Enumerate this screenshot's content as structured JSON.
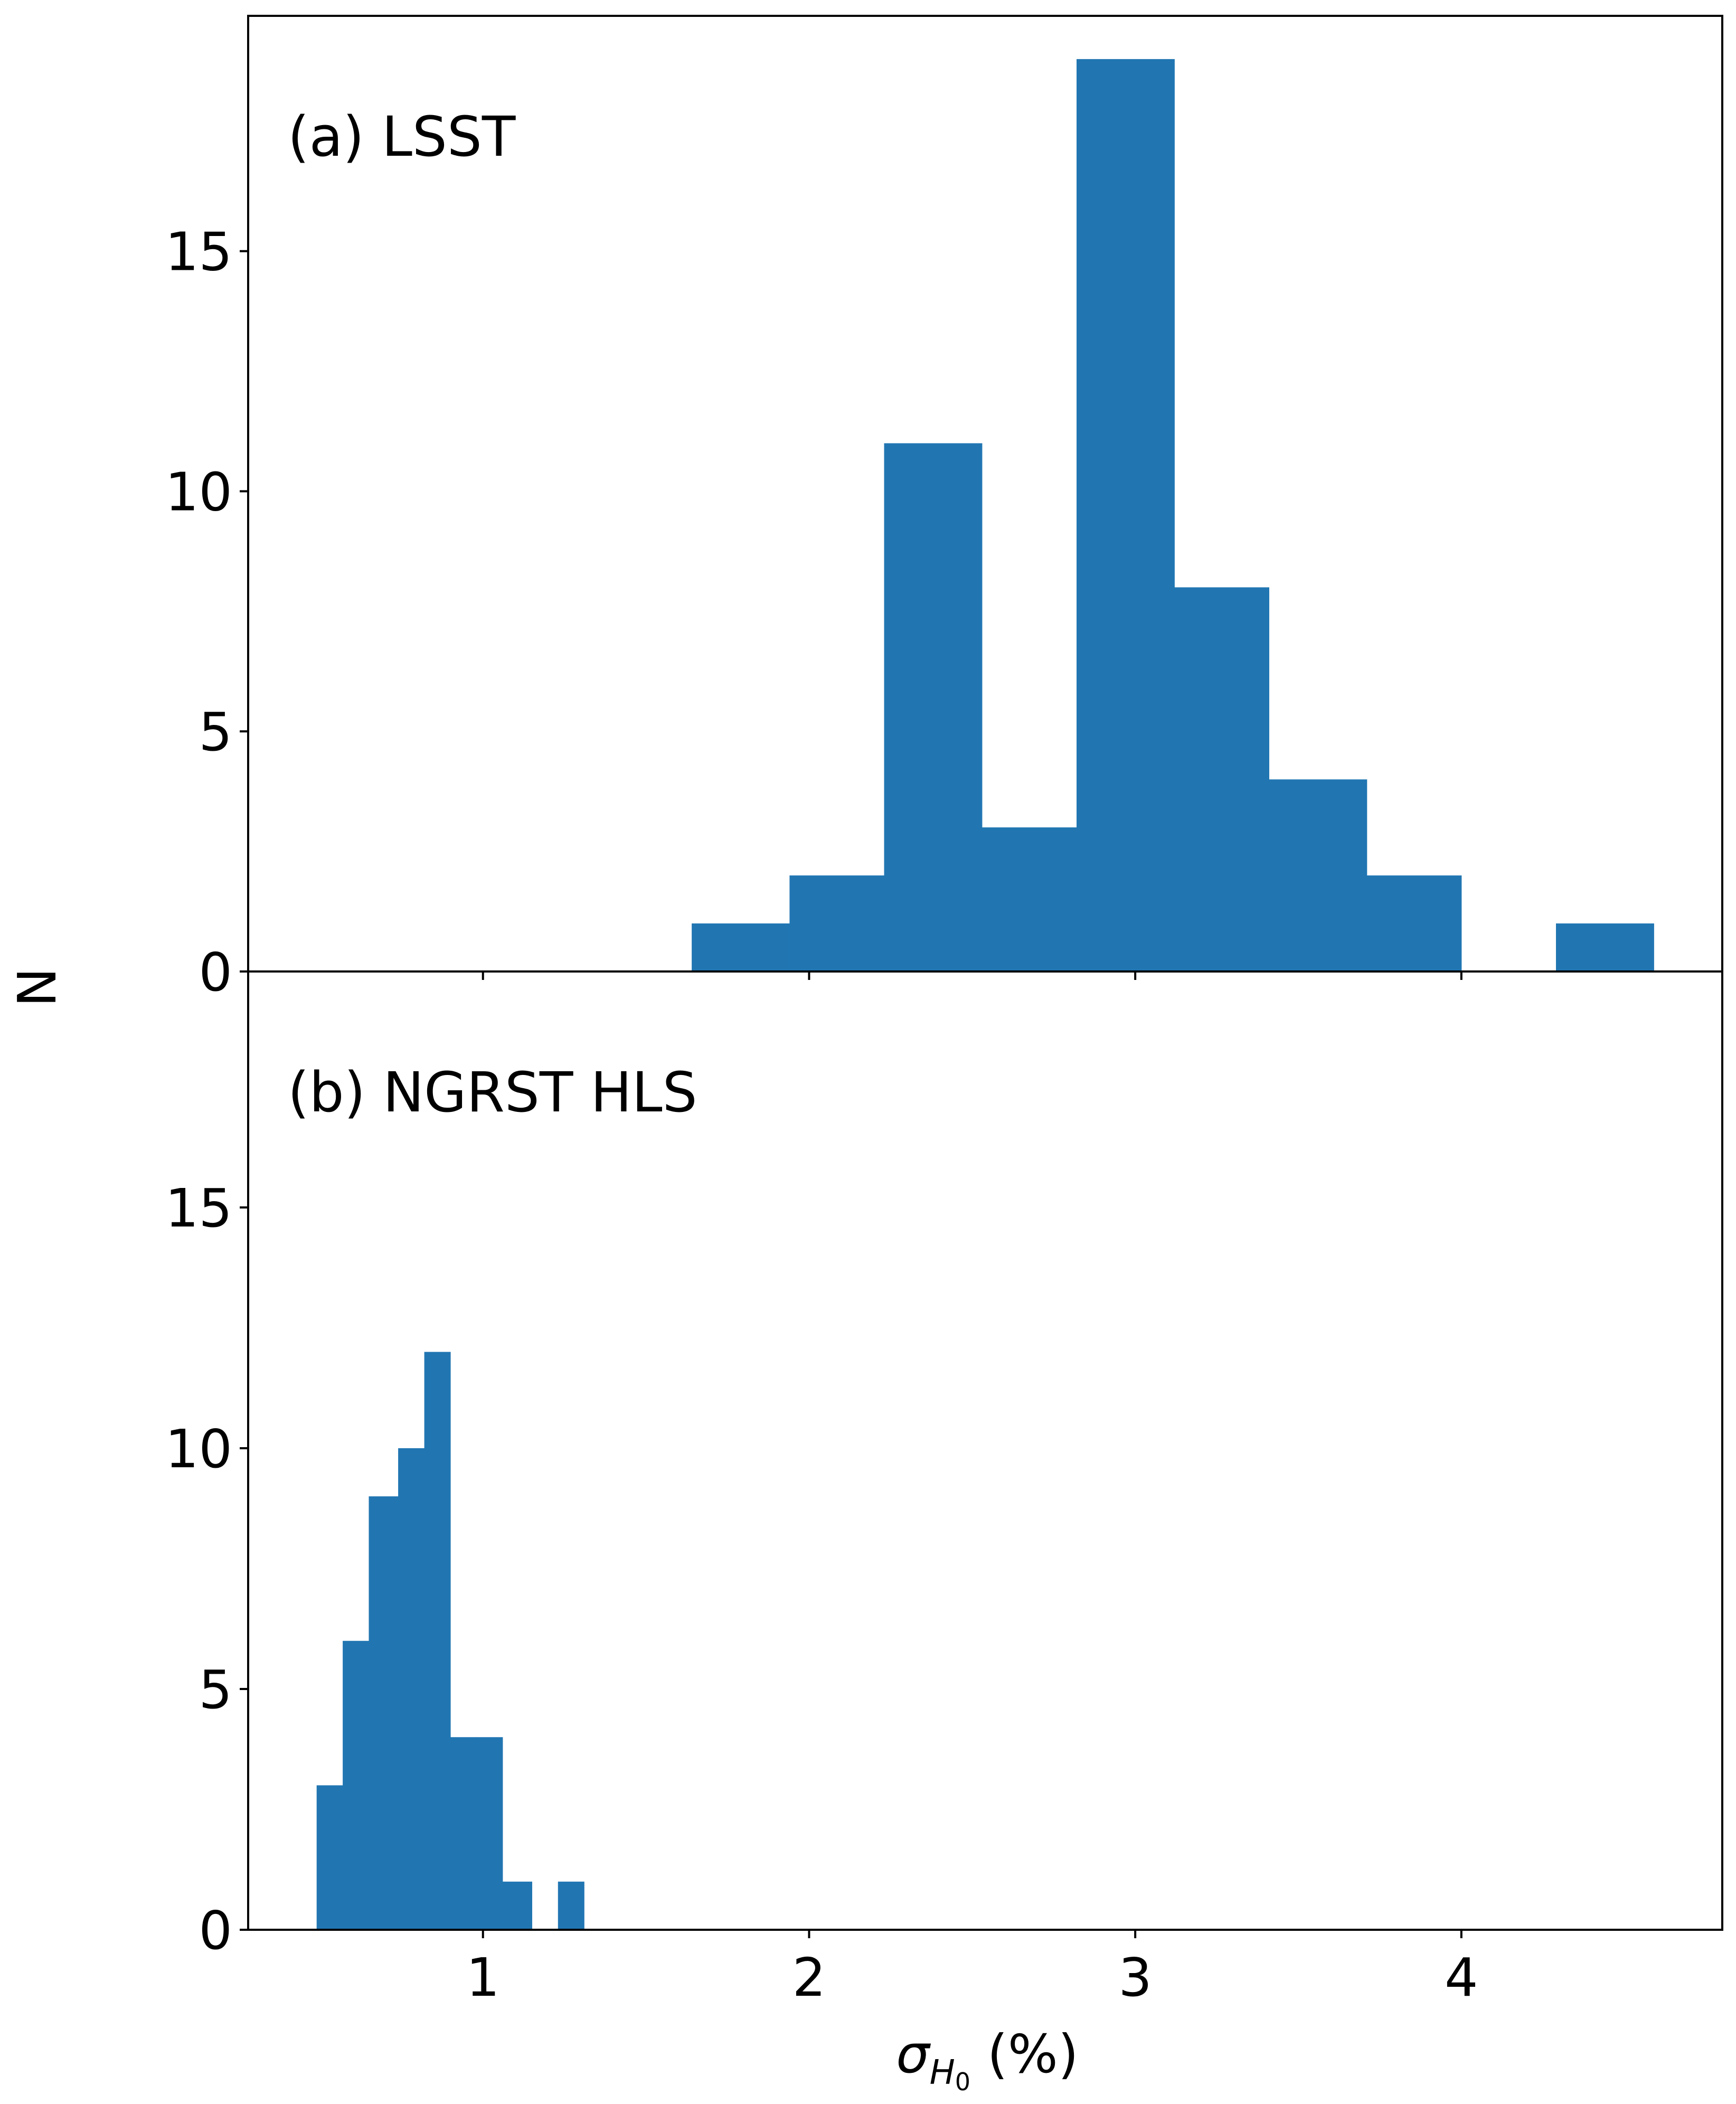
{
  "chart_data": {
    "type": "bar",
    "shared_x": {
      "label_symbol": "σ",
      "label_subscript": "H",
      "label_sub_subscript": "0",
      "label_suffix": " (%)",
      "ticks": [
        1,
        2,
        3,
        4
      ],
      "xlim": [
        0.28,
        4.8
      ]
    },
    "ylabel": "N",
    "color": "#2176b2",
    "panels": [
      {
        "title": "(a) LSST",
        "ylim": [
          0,
          19.9
        ],
        "yticks": [
          0,
          5,
          10,
          15
        ],
        "bins": [
          {
            "x0": 1.64,
            "x1": 1.94,
            "count": 1
          },
          {
            "x0": 1.94,
            "x1": 2.23,
            "count": 2
          },
          {
            "x0": 2.23,
            "x1": 2.53,
            "count": 11
          },
          {
            "x0": 2.53,
            "x1": 2.82,
            "count": 3
          },
          {
            "x0": 2.82,
            "x1": 3.12,
            "count": 19
          },
          {
            "x0": 3.12,
            "x1": 3.41,
            "count": 8
          },
          {
            "x0": 3.41,
            "x1": 3.71,
            "count": 4
          },
          {
            "x0": 3.71,
            "x1": 4.0,
            "count": 2
          },
          {
            "x0": 4.0,
            "x1": 4.29,
            "count": 0
          },
          {
            "x0": 4.29,
            "x1": 4.59,
            "count": 1
          }
        ]
      },
      {
        "title": "(b) NGRST HLS",
        "ylim": [
          0,
          19.9
        ],
        "yticks": [
          0,
          5,
          10,
          15
        ],
        "bins": [
          {
            "x0": 0.49,
            "x1": 0.57,
            "count": 3
          },
          {
            "x0": 0.57,
            "x1": 0.65,
            "count": 6
          },
          {
            "x0": 0.65,
            "x1": 0.74,
            "count": 9
          },
          {
            "x0": 0.74,
            "x1": 0.82,
            "count": 10
          },
          {
            "x0": 0.82,
            "x1": 0.9,
            "count": 12
          },
          {
            "x0": 0.9,
            "x1": 0.98,
            "count": 4
          },
          {
            "x0": 0.98,
            "x1": 1.06,
            "count": 4
          },
          {
            "x0": 1.06,
            "x1": 1.15,
            "count": 1
          },
          {
            "x0": 1.15,
            "x1": 1.23,
            "count": 0
          },
          {
            "x0": 1.23,
            "x1": 1.31,
            "count": 1
          }
        ]
      }
    ]
  }
}
